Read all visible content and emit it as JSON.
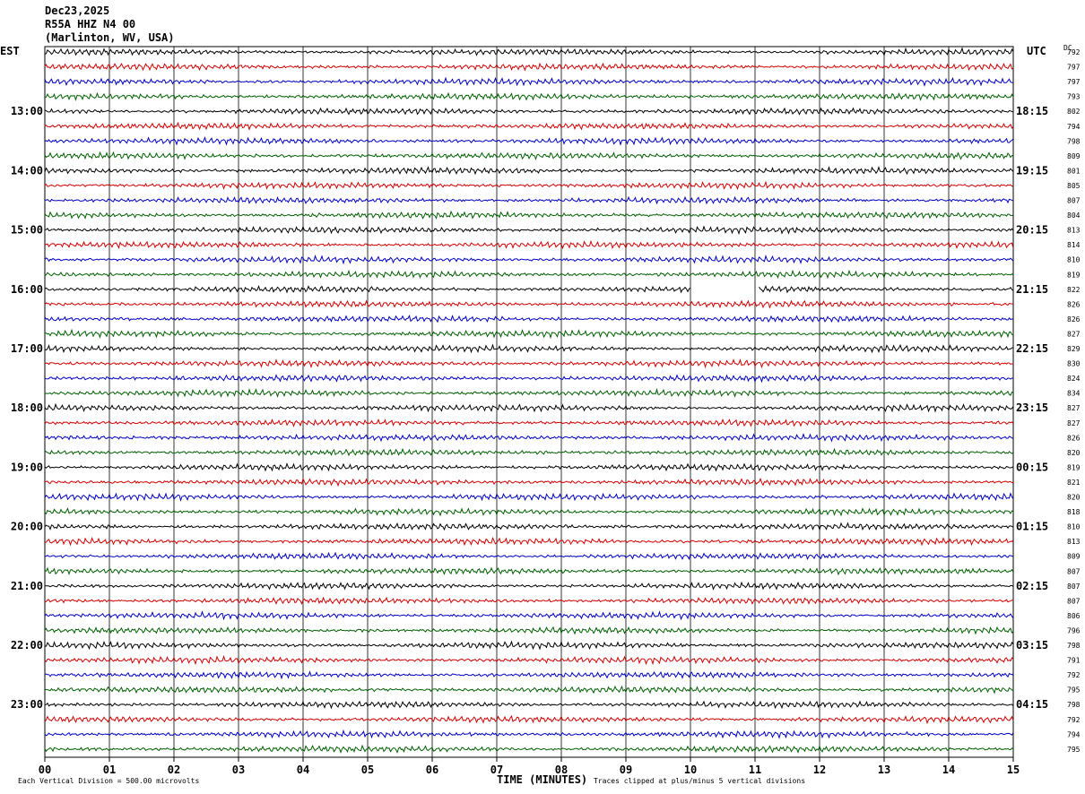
{
  "header": {
    "date": "Dec23,2025",
    "station": "R55A HHZ N4 00",
    "location": "(Marlinton, WV, USA)"
  },
  "left_tz": "EST",
  "right_tz": "UTC",
  "dc_label": "DC",
  "footer": {
    "scale_note": "Each Vertical Division =  500.00 microvolts",
    "xlabel": "TIME (MINUTES)",
    "clip_note": "Traces clipped at plus/minus 5 vertical divisions"
  },
  "chart_data": {
    "type": "line",
    "title": "Dec23,2025 R55A HHZ N4 00 (Marlinton, WV, USA)",
    "xlabel": "TIME (MINUTES)",
    "xlim": [
      0,
      15
    ],
    "x_ticks": [
      "00",
      "01",
      "02",
      "03",
      "04",
      "05",
      "06",
      "07",
      "08",
      "09",
      "10",
      "11",
      "12",
      "13",
      "14",
      "15"
    ],
    "trace_count": 48,
    "trace_colors": [
      "#000000",
      "#d00000",
      "#0000c0",
      "#006000"
    ],
    "left_hour_labels": [
      "13:00",
      "14:00",
      "15:00",
      "16:00",
      "17:00",
      "18:00",
      "19:00",
      "20:00",
      "21:00",
      "22:00",
      "23:00"
    ],
    "right_hour_labels": [
      "18:15",
      "19:15",
      "20:15",
      "21:15",
      "22:15",
      "23:15",
      "00:15",
      "01:15",
      "02:15",
      "03:15",
      "04:15"
    ],
    "dc_values": [
      792,
      797,
      797,
      793,
      802,
      794,
      798,
      809,
      801,
      805,
      807,
      804,
      813,
      814,
      810,
      819,
      822,
      826,
      826,
      827,
      829,
      830,
      824,
      834,
      827,
      827,
      826,
      820,
      819,
      821,
      820,
      818,
      810,
      813,
      809,
      807,
      807,
      807,
      806,
      796,
      798,
      791,
      792,
      795,
      798,
      792,
      794,
      795
    ],
    "gap": {
      "trace_index": 16,
      "start_min": 10.0,
      "end_min": 11.05
    }
  }
}
